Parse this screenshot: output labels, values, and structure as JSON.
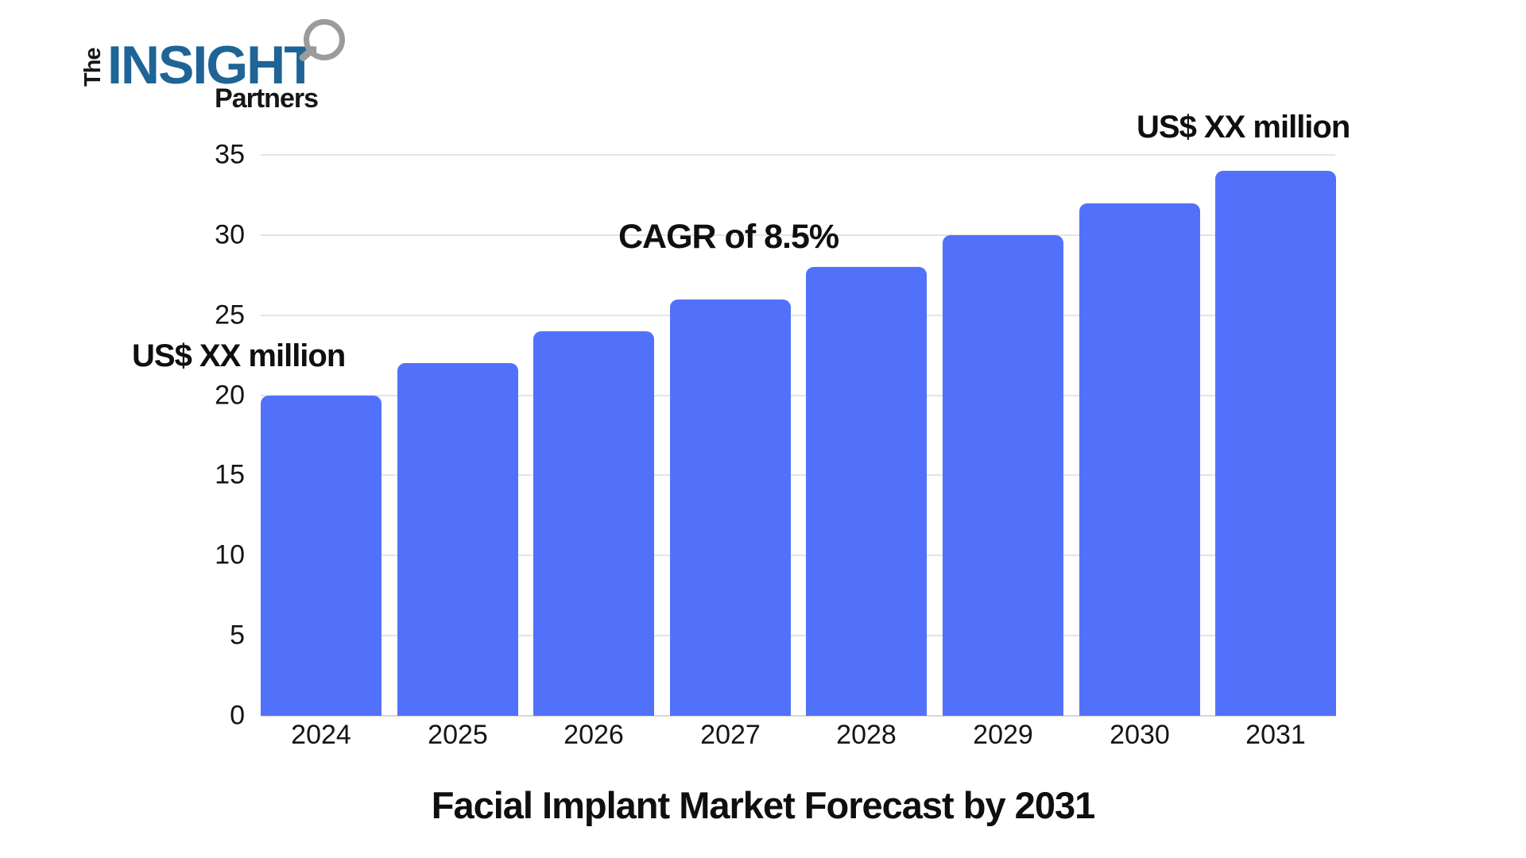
{
  "logo": {
    "the": "The",
    "insight": "INSIGHT",
    "partners": "Partners",
    "insight_color": "#1E6496",
    "text_color": "#161616",
    "magnifier_color": "#9B9B9B"
  },
  "chart_data": {
    "type": "bar",
    "title": "Facial Implant Market Forecast by 2031",
    "categories": [
      "2024",
      "2025",
      "2026",
      "2027",
      "2028",
      "2029",
      "2030",
      "2031"
    ],
    "values": [
      20,
      22,
      24,
      26,
      28,
      30,
      32,
      34
    ],
    "xlabel": "",
    "ylabel": "",
    "ylim": [
      0,
      35
    ],
    "yticks": [
      0,
      5,
      10,
      15,
      20,
      25,
      30,
      35
    ],
    "grid": true,
    "legend": false,
    "bar_color": "#5271FA",
    "gridline_color": "#E4E4E4",
    "axis_line_color": "#D6D6D6",
    "label_color": "#141414",
    "annotations": [
      {
        "text": "US$ XX million",
        "target": "first-bar-2024"
      },
      {
        "text": "CAGR of 8.5%",
        "target": "mid-chart"
      },
      {
        "text": "US$ XX million",
        "target": "last-bar-2031"
      }
    ]
  }
}
